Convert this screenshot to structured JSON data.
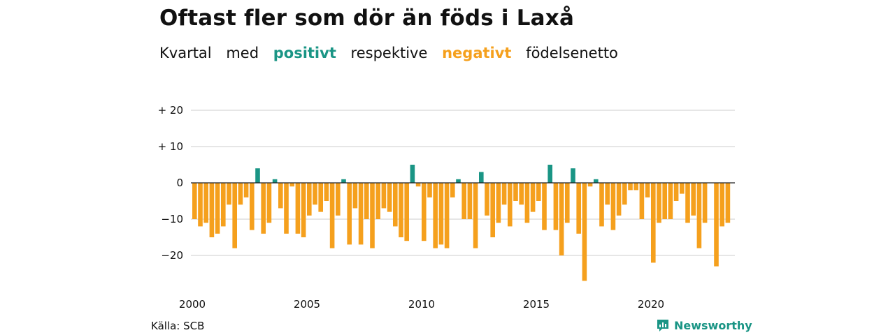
{
  "header": {
    "title": "Oftast fler som dör än föds i Laxå",
    "subtitle": {
      "part1": "Kvartal",
      "part2": "med",
      "positive": "positivt",
      "part3": "respektive",
      "negative": "negativt",
      "part4": "födelsenetto"
    }
  },
  "footer": {
    "source": "Källa: SCB",
    "brand": "Newsworthy",
    "brand_icon": "newsworthy-logo-icon"
  },
  "colors": {
    "positive": "#1a9585",
    "negative": "#f5a01d",
    "grid": "#dddddd",
    "zero_line": "#222222"
  },
  "chart_data": {
    "type": "bar",
    "title": "Oftast fler som dör än föds i Laxå",
    "subtitle": "Kvartal med positivt respektive negativt födelsenetto",
    "xlabel": "",
    "ylabel": "",
    "start_year": 2000,
    "ylim": [
      -28,
      20
    ],
    "yticks": [
      {
        "value": 20,
        "label": "+ 20"
      },
      {
        "value": 10,
        "label": "+ 10"
      },
      {
        "value": 0,
        "label": "0"
      },
      {
        "value": -10,
        "label": "−10"
      },
      {
        "value": -20,
        "label": "−20"
      }
    ],
    "xticks": [
      "2000",
      "2005",
      "2010",
      "2015",
      "2020"
    ],
    "grid": true,
    "values": [
      -10,
      -12,
      -11,
      -15,
      -14,
      -12,
      -6,
      -18,
      -6,
      -4,
      -13,
      4,
      -14,
      -11,
      1,
      -7,
      -14,
      -1,
      -14,
      -15,
      -9,
      -6,
      -8,
      -5,
      -18,
      -9,
      1,
      -17,
      -7,
      -17,
      -10,
      -18,
      -10,
      -7,
      -8,
      -12,
      -15,
      -16,
      5,
      -1,
      -16,
      -4,
      -18,
      -17,
      -18,
      -4,
      1,
      -10,
      -10,
      -18,
      3,
      -9,
      -15,
      -11,
      -6,
      -12,
      -5,
      -6,
      -11,
      -8,
      -5,
      -13,
      5,
      -13,
      -20,
      -11,
      4,
      -14,
      -27,
      -1,
      1,
      -12,
      -6,
      -13,
      -9,
      -6,
      -2,
      -2,
      -10,
      -4,
      -22,
      -11,
      -10,
      -10,
      -5,
      -3,
      -11,
      -9,
      -18,
      -11,
      0,
      -23,
      -12,
      -11
    ]
  }
}
